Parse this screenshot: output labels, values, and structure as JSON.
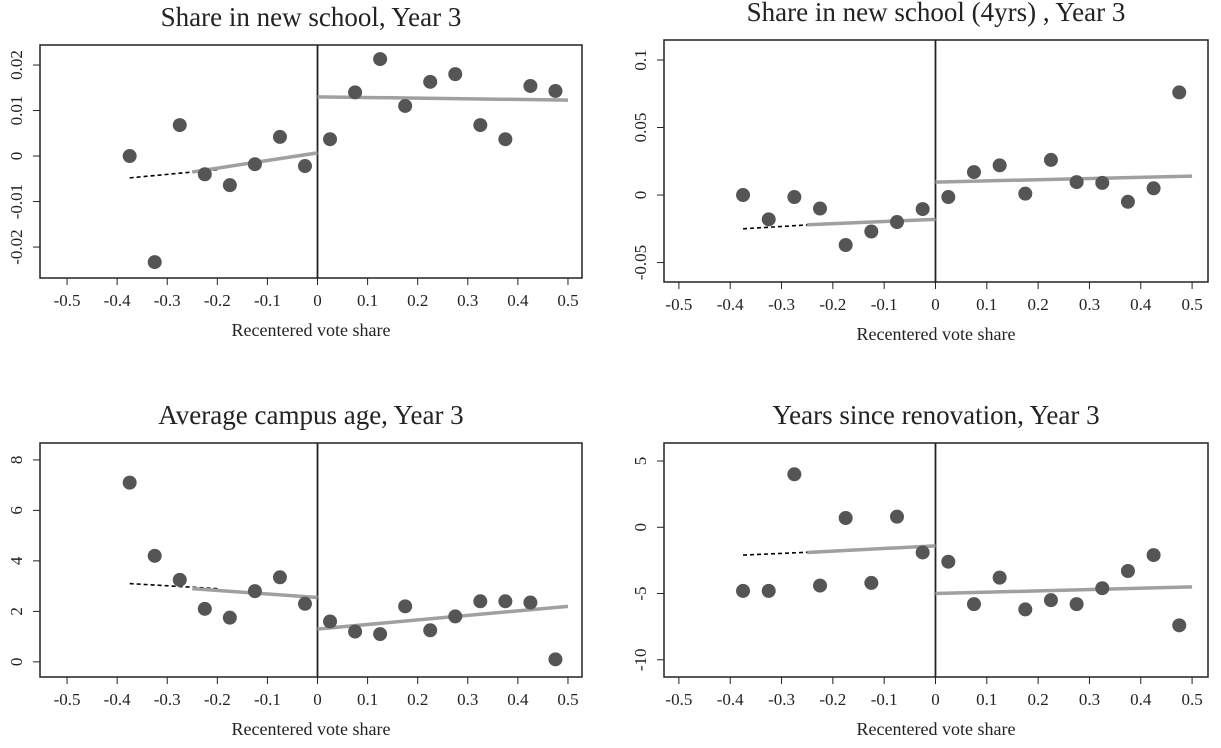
{
  "chart_data": [
    {
      "type": "scatter",
      "title": "Share in new school, Year 3",
      "x_label": "Recentered vote share",
      "x": [
        -0.375,
        -0.325,
        -0.275,
        -0.225,
        -0.175,
        -0.125,
        -0.075,
        -0.025,
        0.025,
        0.075,
        0.125,
        0.175,
        0.225,
        0.275,
        0.325,
        0.375,
        0.425,
        0.475
      ],
      "values": [
        0.0,
        -0.0233,
        0.0068,
        -0.004,
        -0.0064,
        -0.0018,
        0.0042,
        -0.0022,
        0.0037,
        0.014,
        0.0213,
        0.011,
        0.0163,
        0.018,
        0.0068,
        0.0037,
        0.0154,
        0.0143
      ],
      "color": "#555555",
      "fits": [
        {
          "x": [
            -0.375,
            -0.2
          ],
          "y": [
            -0.0048,
            -0.003
          ],
          "color": "#000000",
          "dashed": true
        },
        {
          "x": [
            -0.25,
            0
          ],
          "y": [
            -0.0035,
            0.0007
          ],
          "color": "#a0a0a0",
          "dashed": false
        },
        {
          "x": [
            0,
            0.5
          ],
          "y": [
            0.013,
            0.0123
          ],
          "color": "#a0a0a0",
          "dashed": false
        }
      ],
      "cutoff": 0,
      "xlim": [
        -0.554,
        0.528
      ],
      "ylim": [
        -0.0268,
        0.0244
      ],
      "xticks": [
        -0.5,
        -0.4,
        -0.3,
        -0.2,
        -0.1,
        0,
        0.1,
        0.2,
        0.3,
        0.4,
        0.5
      ],
      "yticks": [
        -0.02,
        -0.01,
        0,
        0.01,
        0.02
      ]
    },
    {
      "type": "scatter",
      "title": "Share in new school (4yrs) , Year 3",
      "x_label": "Recentered vote share",
      "x": [
        -0.375,
        -0.325,
        -0.275,
        -0.225,
        -0.175,
        -0.125,
        -0.075,
        -0.025,
        0.025,
        0.075,
        0.125,
        0.175,
        0.225,
        0.275,
        0.325,
        0.375,
        0.425,
        0.475
      ],
      "values": [
        0.0,
        -0.018,
        -0.0015,
        -0.01,
        -0.037,
        -0.027,
        -0.02,
        -0.0104,
        -0.0015,
        0.017,
        0.022,
        0.001,
        0.026,
        0.0096,
        0.009,
        -0.005,
        0.005,
        0.076
      ],
      "color": "#555555",
      "fits": [
        {
          "x": [
            -0.375,
            -0.2
          ],
          "y": [
            -0.025,
            -0.021
          ],
          "color": "#000000",
          "dashed": true
        },
        {
          "x": [
            -0.25,
            0
          ],
          "y": [
            -0.022,
            -0.018
          ],
          "color": "#a0a0a0",
          "dashed": false
        },
        {
          "x": [
            0,
            0.5
          ],
          "y": [
            0.0096,
            0.014
          ],
          "color": "#a0a0a0",
          "dashed": false
        }
      ],
      "cutoff": 0,
      "xlim": [
        -0.529,
        0.531
      ],
      "ylim": [
        -0.0644,
        0.1148
      ],
      "xticks": [
        -0.5,
        -0.4,
        -0.3,
        -0.2,
        -0.1,
        0,
        0.1,
        0.2,
        0.3,
        0.4,
        0.5
      ],
      "yticks": [
        -0.05,
        0,
        0.05,
        0.1
      ]
    },
    {
      "type": "scatter",
      "title": "Average campus age, Year 3",
      "x_label": "Recentered vote share",
      "x": [
        -0.375,
        -0.325,
        -0.275,
        -0.225,
        -0.175,
        -0.125,
        -0.075,
        -0.025,
        0.025,
        0.075,
        0.125,
        0.175,
        0.225,
        0.275,
        0.325,
        0.375,
        0.425,
        0.475
      ],
      "values": [
        7.1,
        4.2,
        3.25,
        2.1,
        1.75,
        2.8,
        3.35,
        2.3,
        1.6,
        1.2,
        1.1,
        2.2,
        1.25,
        1.8,
        2.4,
        2.4,
        2.35,
        0.1
      ],
      "color": "#555555",
      "fits": [
        {
          "x": [
            -0.375,
            -0.2
          ],
          "y": [
            3.1,
            2.9
          ],
          "color": "#000000",
          "dashed": true
        },
        {
          "x": [
            -0.25,
            0
          ],
          "y": [
            2.9,
            2.55
          ],
          "color": "#a0a0a0",
          "dashed": false
        },
        {
          "x": [
            0,
            0.5
          ],
          "y": [
            1.3,
            2.2
          ],
          "color": "#a0a0a0",
          "dashed": false
        }
      ],
      "cutoff": 0,
      "xlim": [
        -0.554,
        0.528
      ],
      "ylim": [
        -0.6,
        8.67
      ],
      "xticks": [
        -0.5,
        -0.4,
        -0.3,
        -0.2,
        -0.1,
        0,
        0.1,
        0.2,
        0.3,
        0.4,
        0.5
      ],
      "yticks": [
        0,
        2,
        4,
        6,
        8
      ]
    },
    {
      "type": "scatter",
      "title": "Years since renovation, Year 3",
      "x_label": "Recentered vote share",
      "x": [
        -0.375,
        -0.325,
        -0.275,
        -0.225,
        -0.175,
        -0.125,
        -0.075,
        -0.025,
        0.025,
        0.075,
        0.125,
        0.175,
        0.225,
        0.275,
        0.325,
        0.375,
        0.425,
        0.475
      ],
      "values": [
        -4.8,
        -4.8,
        4.0,
        -4.4,
        0.7,
        -4.2,
        0.8,
        -1.9,
        -2.6,
        -5.8,
        -3.8,
        -6.2,
        -5.5,
        -5.8,
        -4.6,
        -3.3,
        -2.1,
        -7.4
      ],
      "color": "#555555",
      "fits": [
        {
          "x": [
            -0.375,
            -0.2
          ],
          "y": [
            -2.1,
            -1.8
          ],
          "color": "#000000",
          "dashed": true
        },
        {
          "x": [
            -0.25,
            0
          ],
          "y": [
            -1.9,
            -1.4
          ],
          "color": "#a0a0a0",
          "dashed": false
        },
        {
          "x": [
            0,
            0.5
          ],
          "y": [
            -5.0,
            -4.5
          ],
          "color": "#a0a0a0",
          "dashed": false
        }
      ],
      "cutoff": 0,
      "xlim": [
        -0.529,
        0.531
      ],
      "ylim": [
        -11.3,
        6.36
      ],
      "xticks": [
        -0.5,
        -0.4,
        -0.3,
        -0.2,
        -0.1,
        0,
        0.1,
        0.2,
        0.3,
        0.4,
        0.5
      ],
      "yticks": [
        -10,
        -5,
        0,
        5
      ]
    }
  ]
}
